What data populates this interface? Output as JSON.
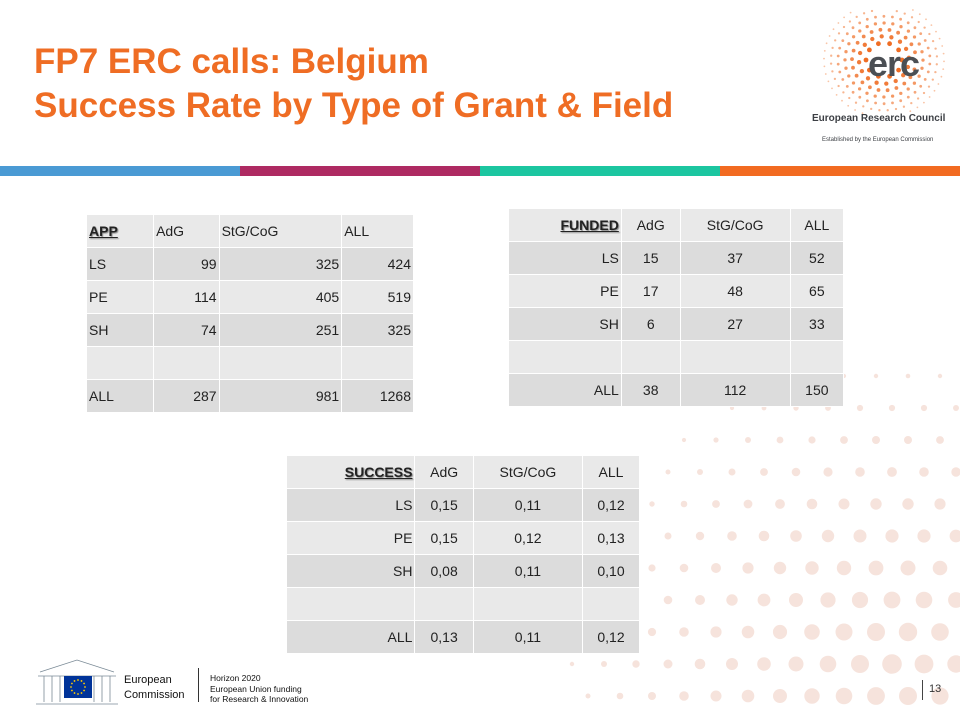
{
  "slide": {
    "title_line1": "FP7 ERC calls: Belgium",
    "title_line2": "Success Rate by Type of Grant & Field",
    "page_number": "13"
  },
  "brand": {
    "logo_word": "erc",
    "logo_name": "European Research Council",
    "logo_tagline": "Established by the European Commission",
    "accent_color": "#ef6d24",
    "stripe_colors": [
      "#4a9ad4",
      "#ae2a62",
      "#1cc6a0",
      "#f26b21"
    ]
  },
  "tables": {
    "app": {
      "header": [
        "APP",
        "AdG",
        "StG/CoG",
        "ALL"
      ],
      "rows": [
        [
          "LS",
          "99",
          "325",
          "424"
        ],
        [
          "PE",
          "114",
          "405",
          "519"
        ],
        [
          "SH",
          "74",
          "251",
          "325"
        ],
        [
          "",
          "",
          "",
          ""
        ],
        [
          "ALL",
          "287",
          "981",
          "1268"
        ]
      ]
    },
    "funded": {
      "header": [
        "FUNDED",
        "AdG",
        "StG/CoG",
        "ALL"
      ],
      "rows": [
        [
          "LS",
          "15",
          "37",
          "52"
        ],
        [
          "PE",
          "17",
          "48",
          "65"
        ],
        [
          "SH",
          "6",
          "27",
          "33"
        ],
        [
          "",
          "",
          "",
          ""
        ],
        [
          "ALL",
          "38",
          "112",
          "150"
        ]
      ]
    },
    "success": {
      "header": [
        "SUCCESS",
        "AdG",
        "StG/CoG",
        "ALL"
      ],
      "rows": [
        [
          "LS",
          "0,15",
          "0,11",
          "0,12"
        ],
        [
          "PE",
          "0,15",
          "0,12",
          "0,13"
        ],
        [
          "SH",
          "0,08",
          "0,11",
          "0,10"
        ],
        [
          "",
          "",
          "",
          ""
        ],
        [
          "ALL",
          "0,13",
          "0,11",
          "0,12"
        ]
      ]
    }
  },
  "footer": {
    "ec_line1": "European",
    "ec_line2": "Commission",
    "h2020_line1": "Horizon 2020",
    "h2020_line2": "European Union funding",
    "h2020_line3": "for Research & Innovation"
  }
}
